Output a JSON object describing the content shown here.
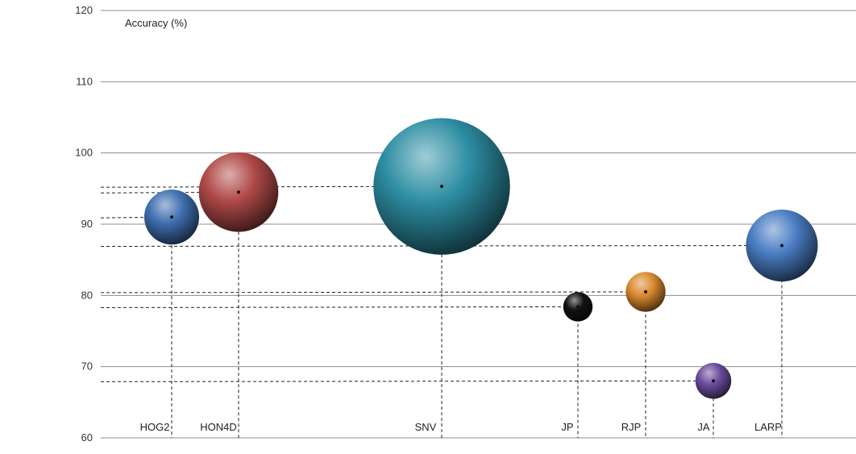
{
  "chart_data": {
    "type": "bubble",
    "ylabel": "Accuracy (%)",
    "ylim": [
      60,
      120
    ],
    "yticks": [
      60,
      70,
      80,
      90,
      100,
      110,
      120
    ],
    "grid": true,
    "legend": "none",
    "categories": [
      "HOG2",
      "HON4D",
      "SNV",
      "JP",
      "RJP",
      "JA",
      "LARP"
    ],
    "points": [
      {
        "label": "HOG2",
        "y": 91.0,
        "size": 2.1,
        "color": "#3f6fb0"
      },
      {
        "label": "HON4D",
        "y": 94.5,
        "size": 4.4,
        "color": "#b04a48"
      },
      {
        "label": "SNV",
        "y": 95.3,
        "size": 13.0,
        "color": "#2d8ea3"
      },
      {
        "label": "JP",
        "y": 78.4,
        "size": 0.6,
        "color": "#111111"
      },
      {
        "label": "RJP",
        "y": 80.5,
        "size": 1.1,
        "color": "#d98a2e"
      },
      {
        "label": "JA",
        "y": 68.0,
        "size": 0.9,
        "color": "#6a4c9c"
      },
      {
        "label": "LARP",
        "y": 87.0,
        "size": 3.6,
        "color": "#4a7ec4"
      }
    ]
  }
}
